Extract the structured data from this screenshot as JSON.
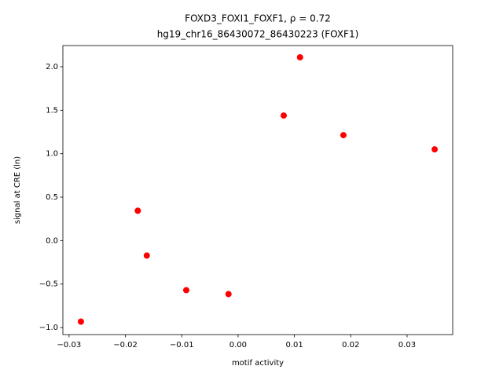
{
  "chart_data": {
    "type": "scatter",
    "title": "FOXD3_FOXI1_FOXF1, ρ = 0.72",
    "subtitle": "hg19_chr16_86430072_86430223 (FOXF1)",
    "x_label": "motif activity",
    "y_label": "signal at CRE (ln)",
    "color": "#ff0000",
    "x": [
      -0.0279,
      -0.0178,
      -0.0162,
      -0.0092,
      -0.0017,
      0.0081,
      0.011,
      0.0187,
      0.0349
    ],
    "values": [
      -0.932,
      0.344,
      -0.172,
      -0.57,
      -0.615,
      1.439,
      2.109,
      1.213,
      1.05
    ],
    "xlim": [
      -0.0311,
      0.0381
    ],
    "ylim": [
      -1.081,
      2.244
    ],
    "xticks": [
      {
        "value": -0.03,
        "label": "−0.03"
      },
      {
        "value": -0.02,
        "label": "−0.02"
      },
      {
        "value": -0.01,
        "label": "−0.01"
      },
      {
        "value": 0,
        "label": "0.00"
      },
      0.01,
      0.02,
      0.03
    ],
    "yticks": [
      {
        "value": -1,
        "label": "−1.0"
      },
      {
        "value": -0.5,
        "label": "−0.5"
      },
      {
        "value": 0,
        "label": "0.0"
      },
      0.5,
      {
        "value": 1,
        "label": "1.0"
      },
      1.5,
      {
        "value": 2,
        "label": "2.0"
      }
    ]
  }
}
